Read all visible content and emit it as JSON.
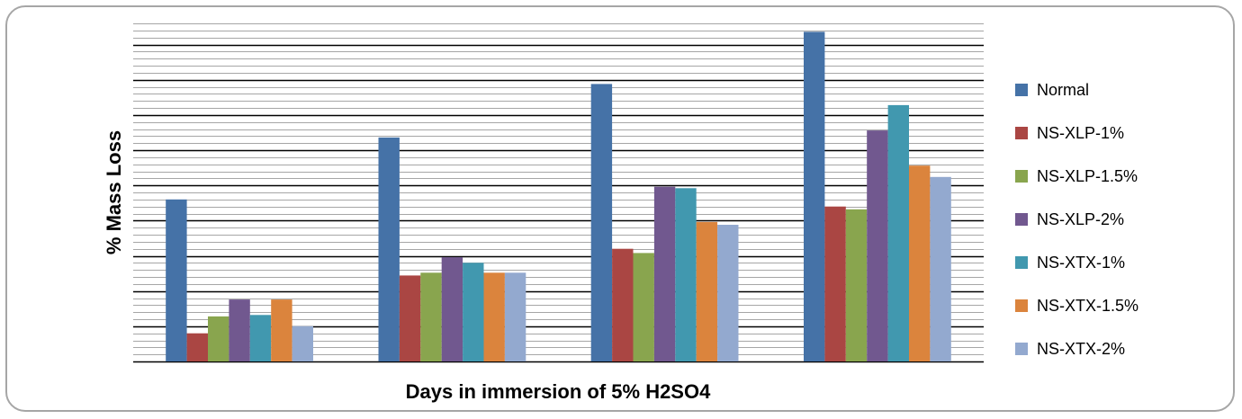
{
  "chart_data": {
    "type": "bar",
    "title": "",
    "xlabel": "Days in immersion of 5% H2SO4",
    "ylabel": "% Mass Loss",
    "categories": [
      "",
      "",
      "",
      ""
    ],
    "ylim": [
      0,
      24
    ],
    "grid": true,
    "legend": "right",
    "series": [
      {
        "name": "Normal",
        "color": "#4572A7",
        "values": [
          11.5,
          15.9,
          19.7,
          23.4
        ]
      },
      {
        "name": "NS-XLP-1%",
        "color": "#AA4643",
        "values": [
          2.0,
          6.1,
          8.0,
          11.0
        ]
      },
      {
        "name": "NS-XLP-1.5%",
        "color": "#89A54E",
        "values": [
          3.2,
          6.3,
          7.7,
          10.8
        ]
      },
      {
        "name": "NS-XLP-2%",
        "color": "#71588F",
        "values": [
          4.4,
          7.4,
          12.4,
          16.4
        ]
      },
      {
        "name": "NS-XTX-1%",
        "color": "#4198AF",
        "values": [
          3.3,
          7.0,
          12.3,
          18.2
        ]
      },
      {
        "name": "NS-XTX-1.5%",
        "color": "#DB843D",
        "values": [
          4.4,
          6.3,
          9.9,
          13.9
        ]
      },
      {
        "name": "NS-XTX-2%",
        "color": "#93A9CF",
        "values": [
          2.5,
          6.3,
          9.7,
          13.1
        ]
      }
    ]
  }
}
